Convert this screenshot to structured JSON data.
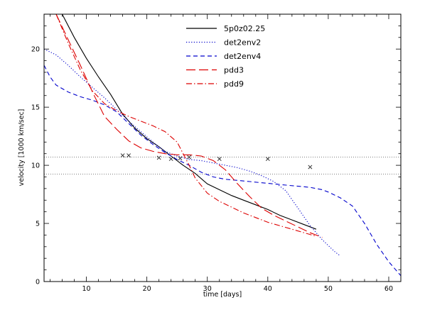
{
  "chart_data": {
    "type": "line",
    "title": "",
    "xlabel": "time [days]",
    "ylabel": "velocity [1000 km/sec]",
    "xlim": [
      3,
      62
    ],
    "ylim": [
      0,
      23
    ],
    "xticks": [
      10,
      20,
      30,
      40,
      50,
      60
    ],
    "yticks": [
      0,
      5,
      10,
      15,
      20
    ],
    "grid": false,
    "legend_position": "top-center",
    "series": [
      {
        "name": "5p0z02.25",
        "color": "#000000",
        "style": "solid",
        "x": [
          6,
          8,
          10,
          12,
          14,
          16,
          18,
          20,
          22,
          24,
          26,
          28,
          30,
          32,
          34,
          36,
          38,
          40,
          42,
          44,
          46,
          48
        ],
        "y": [
          23,
          21,
          19.2,
          17.6,
          16.1,
          14.4,
          13.2,
          12.3,
          11.6,
          10.8,
          10.0,
          9.3,
          8.4,
          7.9,
          7.4,
          7.0,
          6.6,
          6.2,
          5.7,
          5.3,
          4.9,
          4.5
        ]
      },
      {
        "name": "det2env2",
        "color": "#0000cc",
        "style": "dotted",
        "x": [
          3,
          5,
          7,
          9,
          11,
          13,
          15,
          17,
          19,
          21,
          23,
          25,
          27,
          29,
          31,
          33,
          35,
          37,
          39,
          41,
          43,
          45,
          47,
          49,
          51,
          52
        ],
        "y": [
          20,
          19.5,
          18.6,
          17.6,
          16.7,
          15.8,
          14.8,
          13.8,
          12.9,
          12.0,
          11.2,
          10.8,
          10.5,
          10.4,
          10.2,
          10.0,
          9.8,
          9.5,
          9.1,
          8.6,
          7.8,
          6.3,
          4.8,
          3.6,
          2.6,
          2.2
        ]
      },
      {
        "name": "det2env4",
        "color": "#0000cc",
        "style": "dashed",
        "x": [
          3,
          4,
          5,
          7,
          9,
          11,
          13,
          15,
          17,
          19,
          21,
          23,
          25,
          27,
          29,
          31,
          33,
          35,
          37,
          39,
          41,
          43,
          45,
          47,
          49,
          50,
          52,
          54,
          56,
          58,
          60,
          62
        ],
        "y": [
          18.6,
          17.6,
          16.9,
          16.3,
          15.9,
          15.6,
          15.2,
          14.6,
          13.6,
          12.6,
          11.8,
          11.1,
          10.5,
          10.0,
          9.4,
          9.0,
          8.8,
          8.7,
          8.6,
          8.5,
          8.4,
          8.3,
          8.2,
          8.1,
          7.9,
          7.7,
          7.2,
          6.5,
          5.0,
          3.2,
          1.7,
          0.5
        ]
      },
      {
        "name": "pdd3",
        "color": "#dd0000",
        "style": "longdash",
        "x": [
          5,
          7,
          9,
          11,
          13,
          15,
          17,
          19,
          21,
          23,
          25,
          27,
          29,
          31,
          33,
          35,
          37,
          39,
          41,
          43,
          45,
          47,
          49
        ],
        "y": [
          23,
          20.8,
          18.6,
          16.3,
          14.2,
          13.1,
          12.1,
          11.5,
          11.2,
          11.0,
          10.9,
          10.9,
          10.8,
          10.4,
          9.6,
          8.4,
          7.3,
          6.3,
          5.7,
          5.2,
          4.7,
          4.2,
          3.8
        ]
      },
      {
        "name": "pdd9",
        "color": "#dd0000",
        "style": "dashdot",
        "x": [
          5,
          7,
          9,
          11,
          13,
          15,
          17,
          19,
          21,
          23,
          25,
          26,
          27,
          28,
          30,
          32,
          34,
          36,
          38,
          40,
          42,
          44,
          46,
          48
        ],
        "y": [
          23,
          20.5,
          18.2,
          16.4,
          15.3,
          14.7,
          14.2,
          13.8,
          13.4,
          12.9,
          12.0,
          11.0,
          10.0,
          8.9,
          7.6,
          6.9,
          6.4,
          5.9,
          5.5,
          5.1,
          4.8,
          4.5,
          4.2,
          3.9
        ]
      }
    ],
    "reference_lines": [
      10.7,
      9.25
    ],
    "observations": {
      "x": [
        16,
        17,
        22,
        24,
        25.5,
        27,
        32,
        40,
        47
      ],
      "y": [
        10.85,
        10.85,
        10.65,
        10.55,
        10.6,
        10.7,
        10.55,
        10.55,
        9.85
      ]
    }
  }
}
